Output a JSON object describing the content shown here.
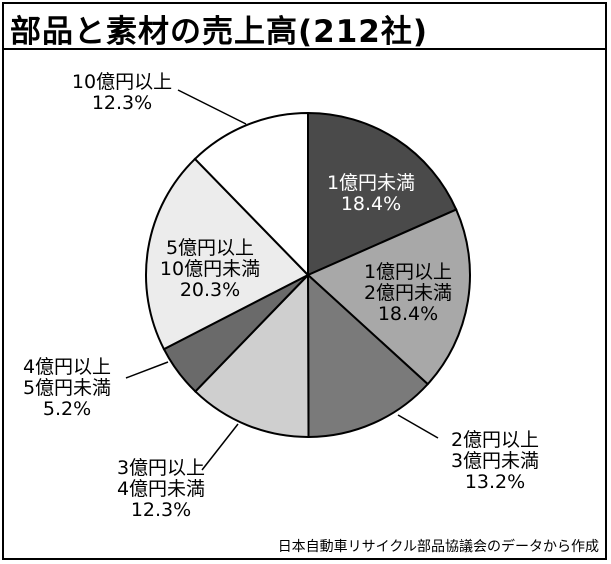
{
  "title": "部品と素材の売上高(212社)",
  "source": "日本自動車リサイクル部品協議会のデータから作成",
  "chart_data": {
    "type": "pie",
    "slices": [
      {
        "label": [
          "1億円未満"
        ],
        "pct": "18.4%",
        "value": 18.4,
        "color": "#4a4a4a",
        "text_color": "#ffffff"
      },
      {
        "label": [
          "1億円以上",
          "2億円未満"
        ],
        "pct": "18.4%",
        "value": 18.4,
        "color": "#a8a8a8",
        "text_color": "#000000"
      },
      {
        "label": [
          "2億円以上",
          "3億円未満"
        ],
        "pct": "13.2%",
        "value": 13.2,
        "color": "#7a7a7a",
        "text_color": "#000000"
      },
      {
        "label": [
          "3億円以上",
          "4億円未満"
        ],
        "pct": "12.3%",
        "value": 12.3,
        "color": "#cfcfcf",
        "text_color": "#000000"
      },
      {
        "label": [
          "4億円以上",
          "5億円未満"
        ],
        "pct": "5.2%",
        "value": 5.2,
        "color": "#6a6a6a",
        "text_color": "#000000"
      },
      {
        "label": [
          "5億円以上",
          "10億円未満"
        ],
        "pct": "20.3%",
        "value": 20.3,
        "color": "#ececec",
        "text_color": "#000000"
      },
      {
        "label": [
          "10億円以上"
        ],
        "pct": "12.3%",
        "value": 12.3,
        "color": "#ffffff",
        "text_color": "#000000"
      }
    ]
  }
}
